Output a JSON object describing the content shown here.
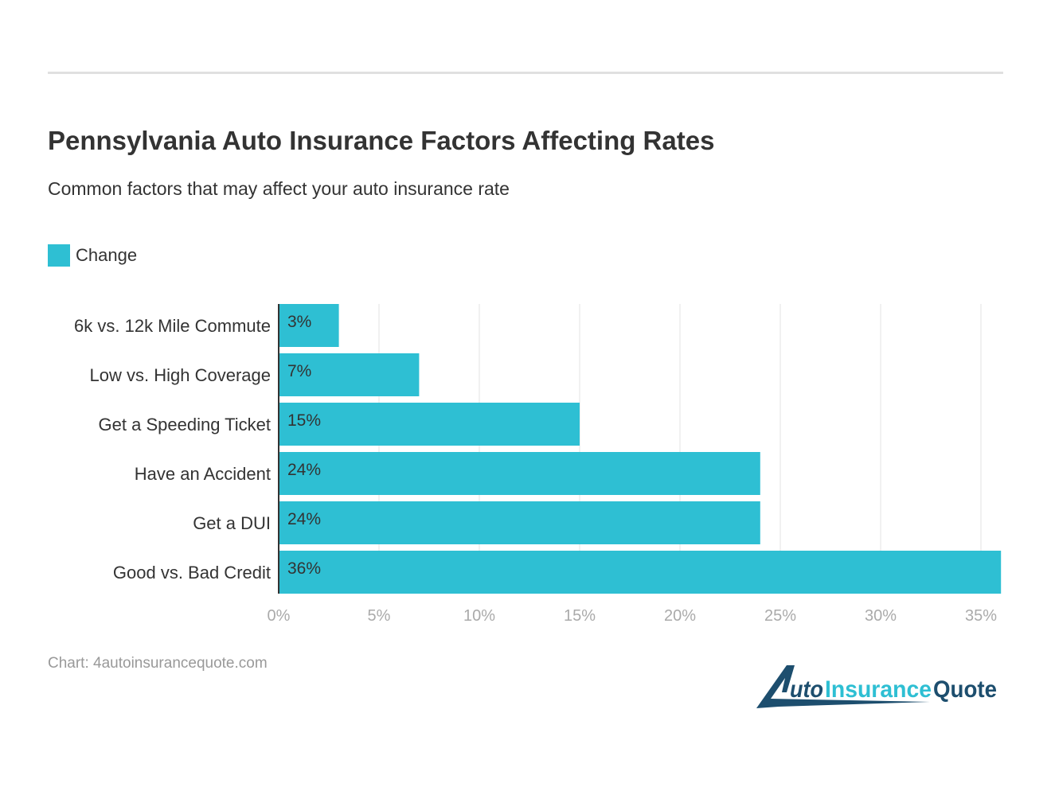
{
  "chart_data": {
    "type": "bar",
    "orientation": "horizontal",
    "title": "Pennsylvania Auto Insurance Factors Affecting Rates",
    "subtitle": "Common factors that may affect your auto insurance rate",
    "categories": [
      "6k vs. 12k Mile Commute",
      "Low vs. High Coverage",
      "Get a Speeding Ticket",
      "Have an Accident",
      "Get a DUI",
      "Good vs. Bad Credit"
    ],
    "series": [
      {
        "name": "Change",
        "values": [
          3,
          7,
          15,
          24,
          24,
          36
        ],
        "color": "#2ebfd3"
      }
    ],
    "data_labels": [
      "3%",
      "7%",
      "15%",
      "24%",
      "24%",
      "36%"
    ],
    "xlim": [
      0,
      36
    ],
    "xticks": [
      0,
      5,
      10,
      15,
      20,
      25,
      30,
      35
    ],
    "xtick_labels": [
      "0%",
      "5%",
      "10%",
      "15%",
      "20%",
      "25%",
      "30%",
      "35%"
    ],
    "grid": true,
    "legend_position": "top-left"
  },
  "source": "Chart: 4autoinsurancequote.com",
  "logo": {
    "text": "4AutoInsuranceQuote",
    "dark_color": "#1d4e6e",
    "light_color": "#2ebfd3"
  }
}
